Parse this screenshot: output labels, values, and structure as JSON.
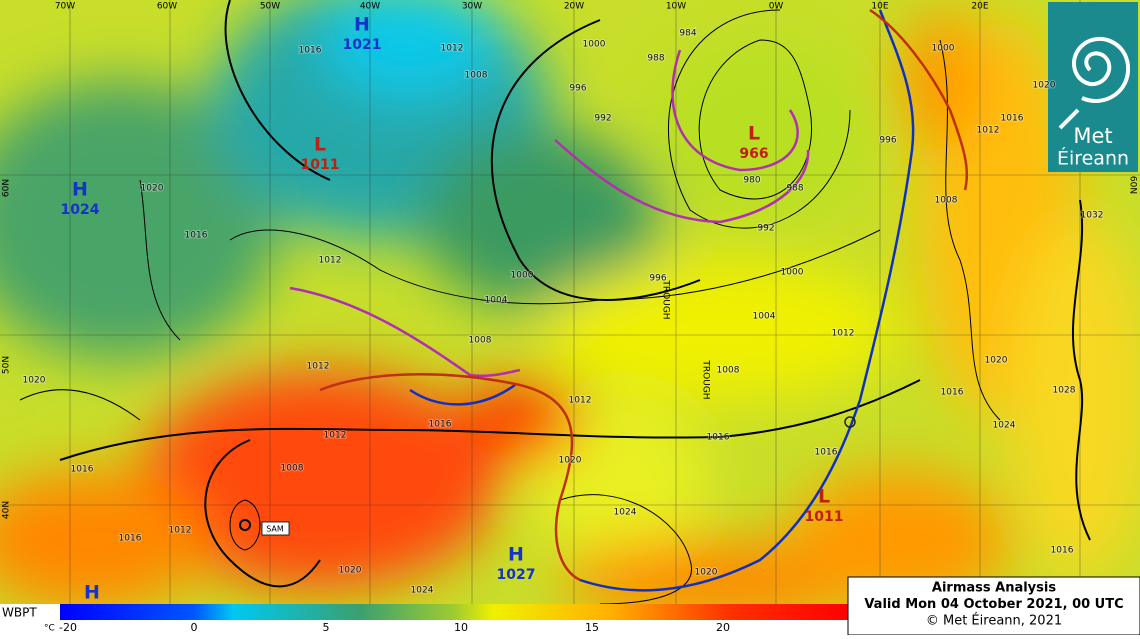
{
  "map": {
    "longitude_labels": [
      "70W",
      "60W",
      "50W",
      "40W",
      "30W",
      "20W",
      "10W",
      "0W",
      "10E",
      "20E"
    ],
    "latitude_labels": [
      "60N",
      "50N",
      "40N",
      "60N"
    ],
    "pressure_centers": [
      {
        "kind": "H",
        "value": 1021
      },
      {
        "kind": "L",
        "value": 1011
      },
      {
        "kind": "H",
        "value": 1024
      },
      {
        "kind": "L",
        "value": 966
      },
      {
        "kind": "L",
        "value": 1011
      },
      {
        "kind": "H",
        "value": 1027
      },
      {
        "kind": "H"
      }
    ],
    "isobar_labels": [
      1016,
      1012,
      1008,
      1000,
      996,
      992,
      988,
      984,
      980,
      988,
      992,
      996,
      1000,
      1008,
      1012,
      1016,
      1020,
      1032,
      1020,
      1016,
      1012,
      1000,
      1004,
      1008,
      996,
      1000,
      1004,
      1008,
      1012,
      1012,
      1020,
      1016,
      1016,
      1012,
      1016,
      1020,
      1024,
      1012,
      1008,
      1012,
      1016,
      1020,
      1024,
      1020,
      1016,
      1016,
      1024,
      1020,
      1028,
      1016
    ],
    "trough_labels": [
      "TROUGH",
      "TROUGH"
    ],
    "storm_label": "SAM"
  },
  "legend": {
    "variable": "WBPT",
    "unit": "°C",
    "ticks": [
      -20,
      0,
      5,
      10,
      15,
      20
    ]
  },
  "info_box": {
    "title": "Airmass Analysis",
    "valid": "Valid Mon 04 October 2021, 00 UTC",
    "copyright": "© Met Éireann, 2021"
  },
  "logo": {
    "line1": "Met",
    "line2": "Éireann"
  }
}
